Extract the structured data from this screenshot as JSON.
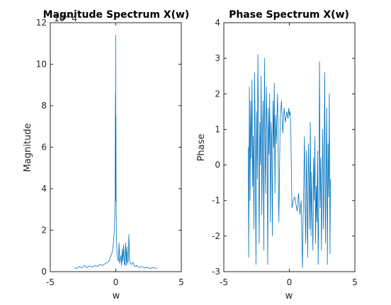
{
  "chart_data": [
    {
      "type": "line",
      "title": "Magnitude Spectrum X(w)",
      "xlabel": "w",
      "ylabel": "Magnitude",
      "xlim": [
        -5,
        5
      ],
      "ylim": [
        0,
        12
      ],
      "xticks": [
        "-5",
        "0",
        "5"
      ],
      "yticks": [
        "0",
        "2",
        "4",
        "6",
        "8",
        "10",
        "12"
      ],
      "exponent_label": "10^4",
      "grid": false,
      "line_color": "#0072BD",
      "series": [
        {
          "x": [
            -3.14,
            -3.0,
            -2.8,
            -2.6,
            -2.4,
            -2.2,
            -2.0,
            -1.8,
            -1.6,
            -1.4,
            -1.2,
            -1.0,
            -0.8,
            -0.6,
            -0.5,
            -0.4,
            -0.3,
            -0.25,
            -0.2,
            -0.15,
            -0.1,
            -0.07,
            -0.05,
            -0.03,
            -0.02,
            -0.01,
            0.0,
            0.01,
            0.02,
            0.03,
            0.05,
            0.08,
            0.1,
            0.15,
            0.2,
            0.25,
            0.3,
            0.4,
            0.45,
            0.5,
            0.55,
            0.6,
            0.65,
            0.7,
            0.75,
            0.8,
            0.85,
            0.9,
            0.95,
            1.0,
            1.05,
            1.1,
            1.2,
            1.3,
            1.4,
            1.5,
            1.6,
            1.8,
            2.0,
            2.2,
            2.4,
            2.6,
            2.8,
            3.0,
            3.14
          ],
          "y": [
            0.2,
            0.15,
            0.25,
            0.18,
            0.3,
            0.2,
            0.28,
            0.22,
            0.3,
            0.25,
            0.35,
            0.3,
            0.4,
            0.45,
            0.55,
            0.7,
            0.9,
            1.0,
            1.3,
            1.6,
            2.2,
            3.0,
            4.5,
            8.6,
            6.0,
            11.4,
            3.4,
            7.5,
            5.0,
            2.8,
            1.6,
            1.1,
            0.8,
            0.6,
            0.5,
            1.4,
            0.4,
            0.8,
            0.3,
            1.1,
            0.5,
            1.3,
            0.4,
            0.3,
            1.4,
            0.3,
            1.2,
            0.4,
            0.6,
            1.8,
            0.5,
            0.4,
            0.35,
            0.45,
            0.3,
            0.25,
            0.3,
            0.2,
            0.25,
            0.18,
            0.22,
            0.15,
            0.2,
            0.18,
            0.15
          ]
        }
      ]
    },
    {
      "type": "line",
      "title": "Phase Spectrum X(w)",
      "xlabel": "w",
      "ylabel": "Phase",
      "xlim": [
        -5,
        5
      ],
      "ylim": [
        -3,
        4
      ],
      "xticks": [
        "-5",
        "0",
        "5"
      ],
      "yticks": [
        "-3",
        "-2",
        "-1",
        "0",
        "1",
        "2",
        "3",
        "4"
      ],
      "grid": false,
      "line_color": "#0072BD",
      "series": [
        {
          "x": [
            -3.14,
            -3.1,
            -3.05,
            -3.0,
            -2.95,
            -2.9,
            -2.85,
            -2.8,
            -2.75,
            -2.7,
            -2.65,
            -2.6,
            -2.55,
            -2.5,
            -2.45,
            -2.4,
            -2.35,
            -2.3,
            -2.25,
            -2.2,
            -2.15,
            -2.1,
            -2.05,
            -2.0,
            -1.95,
            -1.9,
            -1.85,
            -1.8,
            -1.75,
            -1.7,
            -1.65,
            -1.6,
            -1.55,
            -1.5,
            -1.45,
            -1.4,
            -1.35,
            -1.3,
            -1.25,
            -1.2,
            -1.15,
            -1.1,
            -1.05,
            -1.0,
            -0.9,
            -0.8,
            -0.7,
            -0.6,
            -0.5,
            -0.4,
            -0.3,
            -0.2,
            -0.1,
            -0.05,
            0.0,
            0.05,
            0.1,
            0.2,
            0.3,
            0.4,
            0.5,
            0.6,
            0.7,
            0.8,
            0.9,
            1.0,
            1.05,
            1.1,
            1.15,
            1.2,
            1.25,
            1.3,
            1.35,
            1.4,
            1.45,
            1.5,
            1.55,
            1.6,
            1.65,
            1.7,
            1.75,
            1.8,
            1.85,
            1.9,
            1.95,
            2.0,
            2.05,
            2.1,
            2.15,
            2.2,
            2.25,
            2.3,
            2.35,
            2.4,
            2.45,
            2.5,
            2.55,
            2.6,
            2.65,
            2.7,
            2.75,
            2.8,
            2.85,
            2.9,
            2.95,
            3.0,
            3.05,
            3.1,
            3.14
          ],
          "y": [
            0.5,
            -2.6,
            2.2,
            -1.0,
            1.8,
            0.2,
            2.4,
            -0.6,
            0.8,
            -1.8,
            2.6,
            0.4,
            -2.8,
            1.5,
            -0.4,
            3.1,
            0.6,
            -2.2,
            1.2,
            0.0,
            2.5,
            -1.4,
            0.9,
            1.8,
            -2.4,
            3.0,
            0.5,
            -0.8,
            2.2,
            1.0,
            -2.8,
            1.6,
            0.3,
            2.0,
            -1.6,
            1.2,
            0.7,
            -2.0,
            1.8,
            0.5,
            2.3,
            -0.8,
            1.4,
            0.6,
            2.0,
            -1.6,
            1.3,
            1.8,
            0.9,
            1.6,
            1.2,
            1.5,
            1.3,
            1.6,
            1.4,
            1.5,
            1.2,
            -1.2,
            -1.0,
            -0.9,
            -1.1,
            -1.3,
            -0.8,
            -1.4,
            -1.0,
            -2.9,
            -1.5,
            -0.6,
            0.8,
            -1.2,
            -2.2,
            0.4,
            -1.0,
            -2.6,
            0.6,
            -0.4,
            -1.8,
            1.2,
            -2.0,
            -0.2,
            -1.4,
            -2.4,
            0.2,
            -1.0,
            0.8,
            -2.2,
            -0.6,
            -1.6,
            0.4,
            -2.8,
            -0.8,
            2.9,
            -1.2,
            0.2,
            -2.4,
            -0.6,
            1.0,
            -1.8,
            -0.2,
            2.6,
            -2.2,
            -0.4,
            1.6,
            -2.8,
            0.6,
            -0.9,
            2.0,
            -2.5,
            -0.4
          ]
        }
      ]
    }
  ]
}
